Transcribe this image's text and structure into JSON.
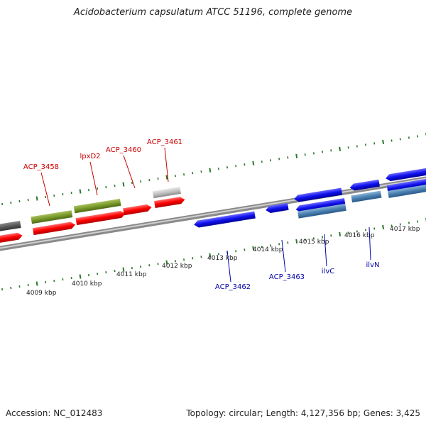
{
  "title": "Acidobacterium capsulatum ATCC 51196, complete genome",
  "footer": {
    "accession": "Accession: NC_012483",
    "summary": "Topology: circular; Length: 4,127,356 bp; Genes: 3,425"
  },
  "colors": {
    "forward_label": "#cc0000",
    "reverse_label": "#0000aa",
    "ruler_tick": "#2a7a2a",
    "red_gene": "#ff0000",
    "green_gene": "#7a9a2a",
    "grey_gene": "#bbbbbb",
    "dark_gene": "#555555",
    "blue_gene": "#1010ee",
    "steelblue_gene": "#4a80b0",
    "backbone": "#8a8a8a"
  },
  "kbp_labels": [
    "4009 kbp",
    "4010 kbp",
    "4011 kbp",
    "4012 kbp",
    "4013 kbp",
    "4014 kbp",
    "4015 kbp",
    "4016 kbp",
    "4017 kbp"
  ],
  "genes": [
    {
      "name": "ACP_3458",
      "strand": "forward"
    },
    {
      "name": "lpxD2",
      "strand": "forward"
    },
    {
      "name": "ACP_3460",
      "strand": "forward"
    },
    {
      "name": "ACP_3461",
      "strand": "forward"
    },
    {
      "name": "ACP_3462",
      "strand": "reverse"
    },
    {
      "name": "ACP_3463",
      "strand": "reverse"
    },
    {
      "name": "ilvC",
      "strand": "reverse"
    },
    {
      "name": "ilvN",
      "strand": "reverse"
    }
  ]
}
